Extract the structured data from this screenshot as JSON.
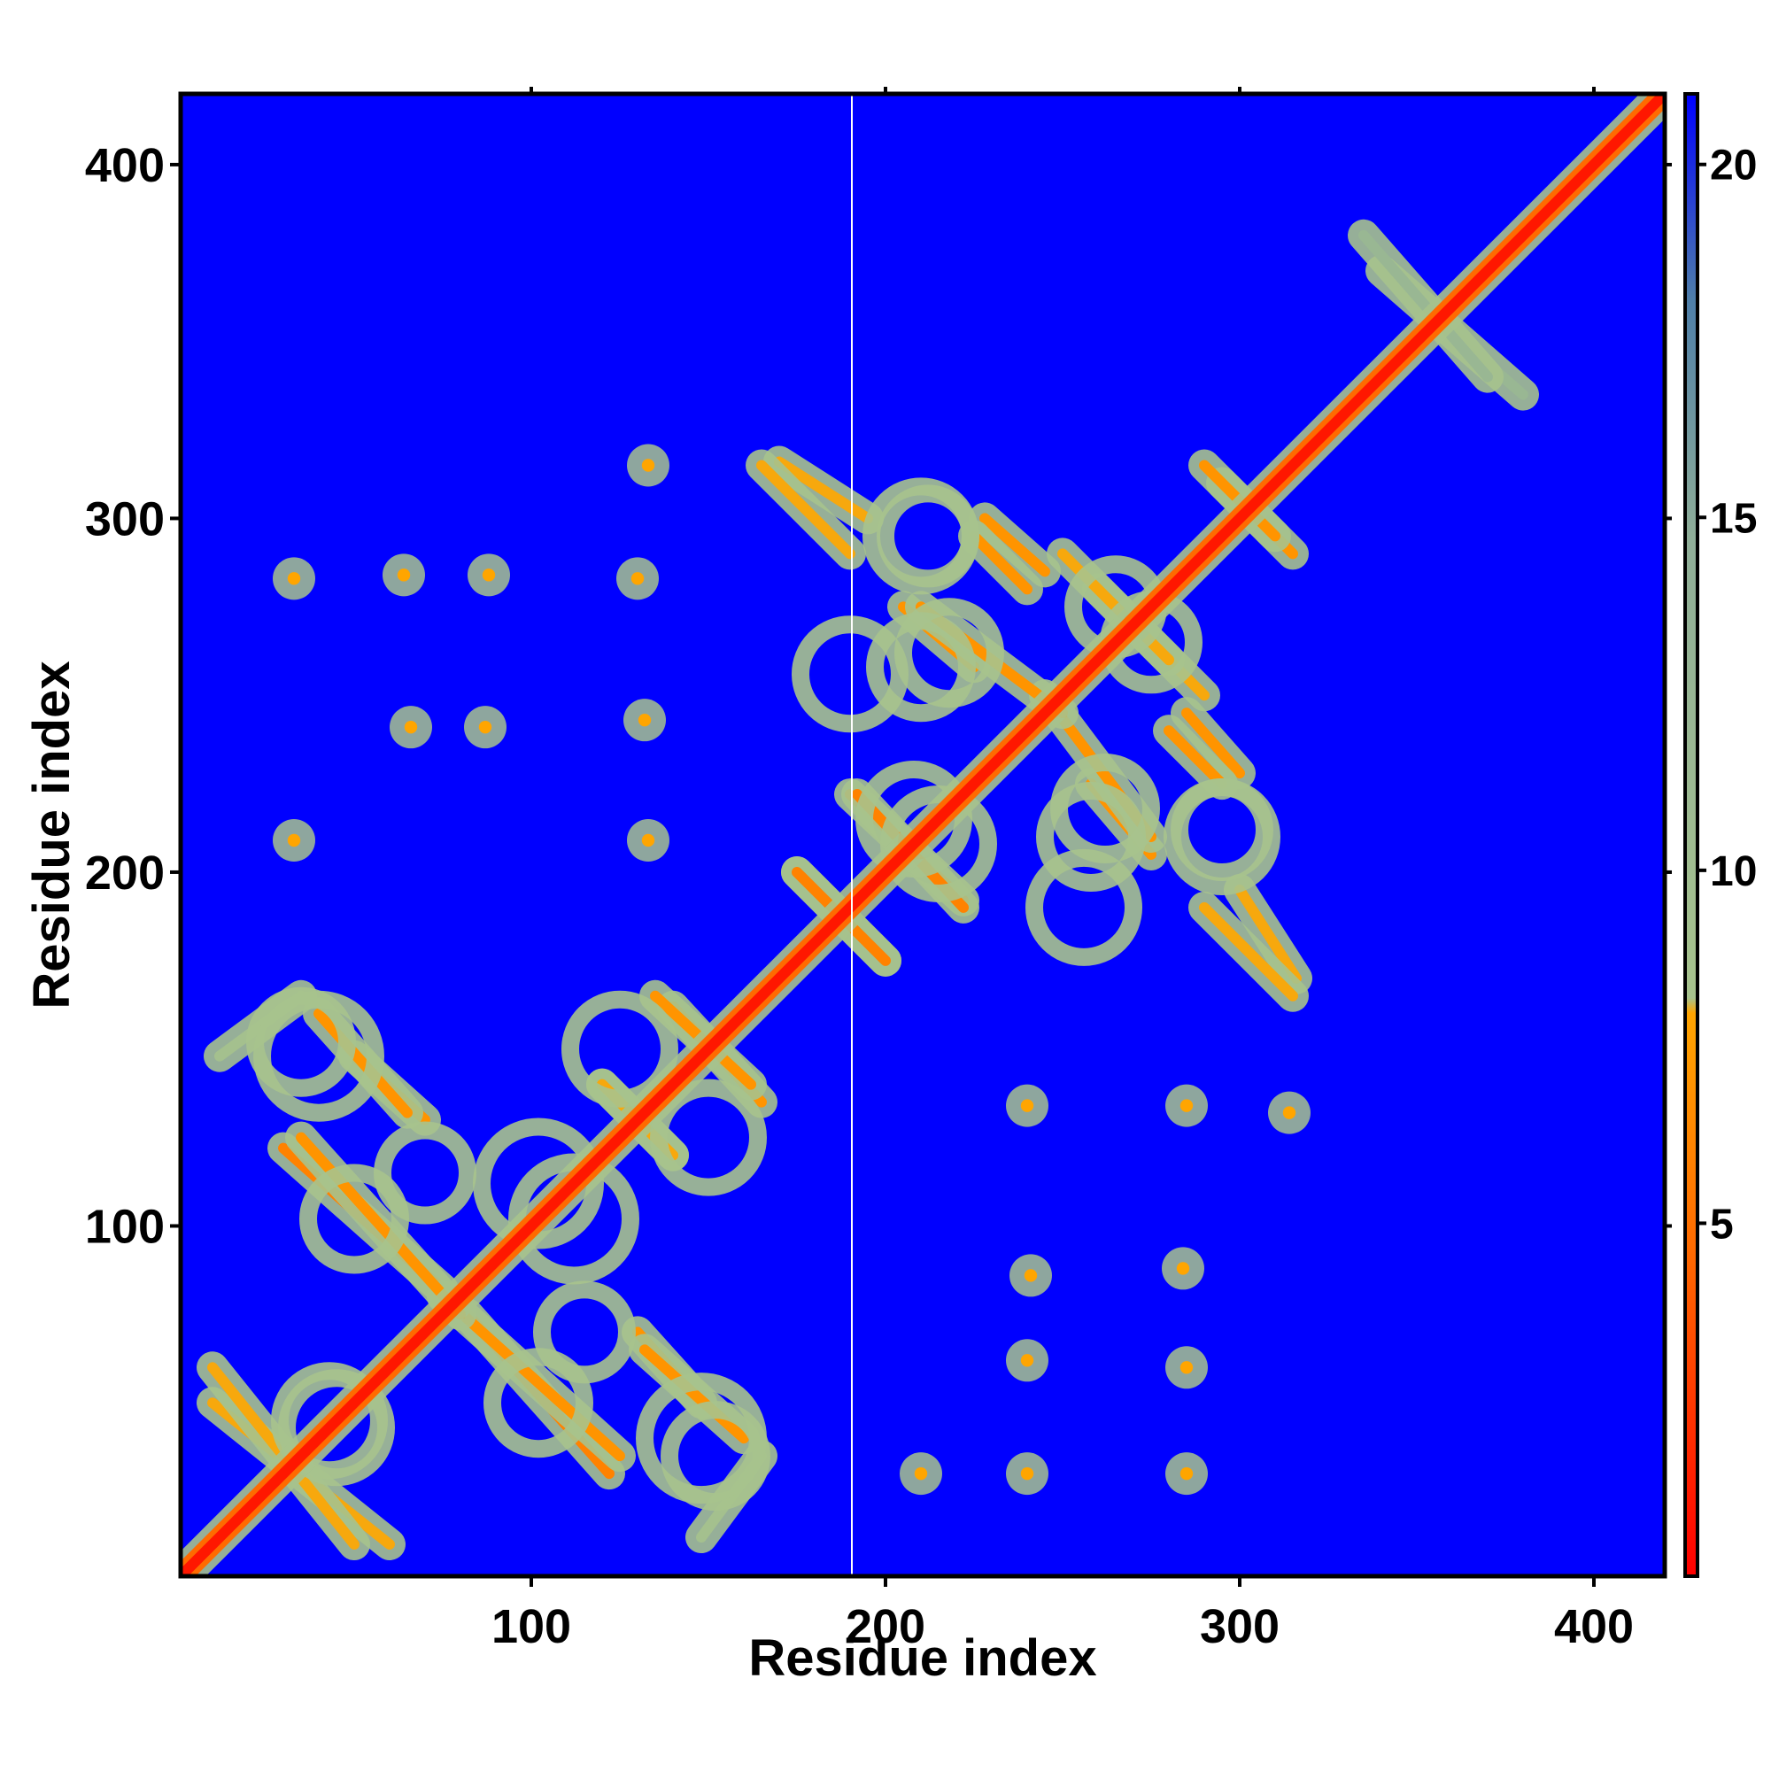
{
  "chart_data": {
    "type": "heatmap",
    "title": "",
    "xlabel": "Residue index",
    "ylabel": "Residue index",
    "xlim": [
      1,
      420
    ],
    "ylim": [
      1,
      420
    ],
    "x_ticks": [
      100,
      200,
      300,
      400
    ],
    "y_ticks": [
      100,
      200,
      300,
      400
    ],
    "colorbar": {
      "range": [
        0,
        21
      ],
      "ticks": [
        5,
        10,
        15,
        20
      ],
      "colors": [
        "#ff0000",
        "#ff6a00",
        "#ffa500",
        "#a7c38d",
        "#4f7fa8",
        "#0000ff"
      ]
    },
    "background_color": "#0000ff",
    "grid": false,
    "diagonal": {
      "from": 1,
      "to": 420,
      "value": 1
    },
    "contact_bands": [
      {
        "x": [
          10,
          60
        ],
        "y": [
          50,
          10
        ],
        "value": 8
      },
      {
        "x": [
          12,
          35
        ],
        "y": [
          148,
          165
        ],
        "value": 9
      },
      {
        "x": [
          50,
          70
        ],
        "y": [
          148,
          130
        ],
        "value": 7
      },
      {
        "x": [
          30,
          75
        ],
        "y": [
          122,
          82
        ],
        "value": 6
      },
      {
        "x": [
          75,
          125
        ],
        "y": [
          80,
          35
        ],
        "value": 7
      },
      {
        "x": [
          132,
          160
        ],
        "y": [
          65,
          40
        ],
        "value": 7
      },
      {
        "x": [
          140,
          165
        ],
        "y": [
          162,
          135
        ],
        "value": 7
      },
      {
        "x": [
          120,
          140
        ],
        "y": [
          140,
          120
        ],
        "value": 8
      },
      {
        "x": [
          170,
          195
        ],
        "y": [
          316,
          300
        ],
        "value": 8
      },
      {
        "x": [
          175,
          200
        ],
        "y": [
          200,
          175
        ],
        "value": 6
      },
      {
        "x": [
          190,
          222
        ],
        "y": [
          222,
          192
        ],
        "value": 6
      },
      {
        "x": [
          205,
          225
        ],
        "y": [
          275,
          258
        ],
        "value": 7
      },
      {
        "x": [
          228,
          245
        ],
        "y": [
          300,
          285
        ],
        "value": 7
      },
      {
        "x": [
          245,
          275
        ],
        "y": [
          250,
          210
        ],
        "value": 7
      },
      {
        "x": [
          260,
          290
        ],
        "y": [
          280,
          250
        ],
        "value": 8
      },
      {
        "x": [
          280,
          295
        ],
        "y": [
          240,
          225
        ],
        "value": 7
      },
      {
        "x": [
          295,
          315
        ],
        "y": [
          310,
          290
        ],
        "value": 7
      },
      {
        "x": [
          290,
          315
        ],
        "y": [
          190,
          165
        ],
        "value": 8
      },
      {
        "x": [
          340,
          380
        ],
        "y": [
          370,
          335
        ],
        "value": 12
      }
    ],
    "contact_rings": [
      {
        "x": 35,
        "y": 152,
        "r": 13
      },
      {
        "x": 70,
        "y": 115,
        "r": 12
      },
      {
        "x": 102,
        "y": 112,
        "r": 16
      },
      {
        "x": 125,
        "y": 150,
        "r": 14
      },
      {
        "x": 43,
        "y": 45,
        "r": 14
      },
      {
        "x": 148,
        "y": 40,
        "r": 16
      },
      {
        "x": 102,
        "y": 50,
        "r": 13
      },
      {
        "x": 210,
        "y": 295,
        "r": 14
      },
      {
        "x": 210,
        "y": 258,
        "r": 13
      },
      {
        "x": 208,
        "y": 215,
        "r": 14
      },
      {
        "x": 262,
        "y": 218,
        "r": 13
      },
      {
        "x": 295,
        "y": 212,
        "r": 12
      },
      {
        "x": 256,
        "y": 190,
        "r": 14
      },
      {
        "x": 275,
        "y": 265,
        "r": 12
      }
    ],
    "contact_spots": [
      {
        "x": 33,
        "y": 283
      },
      {
        "x": 64,
        "y": 284
      },
      {
        "x": 88,
        "y": 284
      },
      {
        "x": 130,
        "y": 283
      },
      {
        "x": 66,
        "y": 241
      },
      {
        "x": 87,
        "y": 241
      },
      {
        "x": 132,
        "y": 243
      },
      {
        "x": 33,
        "y": 209
      },
      {
        "x": 133,
        "y": 209
      },
      {
        "x": 133,
        "y": 315
      },
      {
        "x": 240,
        "y": 134
      },
      {
        "x": 285,
        "y": 134
      },
      {
        "x": 314,
        "y": 132
      },
      {
        "x": 241,
        "y": 86
      },
      {
        "x": 284,
        "y": 88
      },
      {
        "x": 240,
        "y": 62
      },
      {
        "x": 285,
        "y": 60
      },
      {
        "x": 210,
        "y": 30
      },
      {
        "x": 240,
        "y": 30
      },
      {
        "x": 285,
        "y": 30
      }
    ]
  }
}
